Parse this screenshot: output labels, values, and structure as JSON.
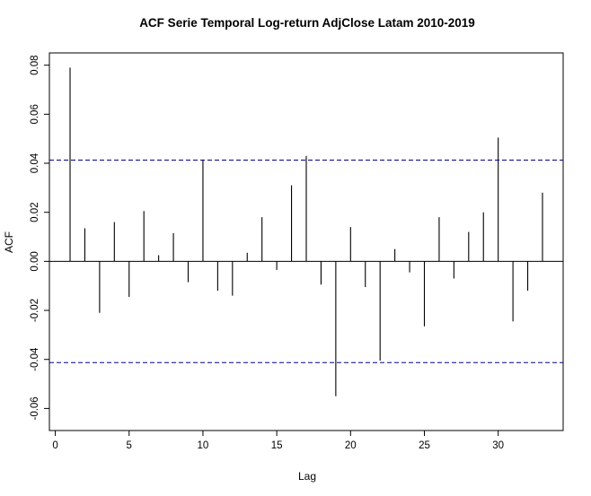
{
  "chart_data": {
    "type": "bar",
    "title": "ACF Serie Temporal Log-return AdjClose Latam 2010-2019",
    "xlabel": "Lag",
    "ylabel": "ACF",
    "xlim": [
      -0.4,
      34.4
    ],
    "ylim": [
      -0.069,
      0.085
    ],
    "x_ticks": [
      0,
      5,
      10,
      15,
      20,
      25,
      30
    ],
    "x_tick_labels": [
      "0",
      "5",
      "10",
      "15",
      "20",
      "25",
      "30"
    ],
    "y_ticks": [
      -0.06,
      -0.04,
      -0.02,
      0.0,
      0.02,
      0.04,
      0.06,
      0.08
    ],
    "y_tick_labels": [
      "-0.06",
      "-0.04",
      "-0.02",
      "0.00",
      "0.02",
      "0.04",
      "0.06",
      "0.08"
    ],
    "lags": [
      1,
      2,
      3,
      4,
      5,
      6,
      7,
      8,
      9,
      10,
      11,
      12,
      13,
      14,
      15,
      16,
      17,
      18,
      19,
      20,
      21,
      22,
      23,
      24,
      25,
      26,
      27,
      28,
      29,
      30,
      31,
      32,
      33
    ],
    "values": [
      0.079,
      0.0135,
      -0.021,
      0.016,
      -0.0145,
      0.0205,
      0.0025,
      0.0115,
      -0.0085,
      0.0415,
      -0.012,
      -0.014,
      0.0035,
      0.018,
      -0.0035,
      0.031,
      0.043,
      -0.0095,
      -0.055,
      0.014,
      -0.0105,
      -0.0405,
      0.005,
      -0.0045,
      -0.0265,
      0.018,
      -0.007,
      0.012,
      0.02,
      0.0505,
      -0.0245,
      -0.012,
      0.028
    ],
    "confidence_bounds": [
      0.0413,
      -0.0413
    ],
    "confidence_color": "#00008B",
    "line_color": "#000000",
    "grid": false
  }
}
